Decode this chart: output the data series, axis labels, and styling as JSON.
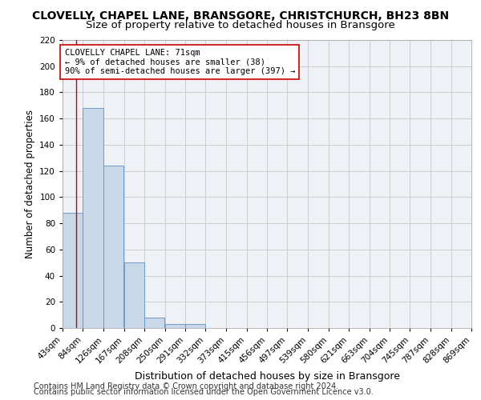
{
  "title": "CLOVELLY, CHAPEL LANE, BRANSGORE, CHRISTCHURCH, BH23 8BN",
  "subtitle": "Size of property relative to detached houses in Bransgore",
  "xlabel": "Distribution of detached houses by size in Bransgore",
  "ylabel": "Number of detached properties",
  "footnote1": "Contains HM Land Registry data © Crown copyright and database right 2024.",
  "footnote2": "Contains public sector information licensed under the Open Government Licence v3.0.",
  "annotation_line1": "CLOVELLY CHAPEL LANE: 71sqm",
  "annotation_line2": "← 9% of detached houses are smaller (38)",
  "annotation_line3": "90% of semi-detached houses are larger (397) →",
  "bar_edges": [
    43,
    84,
    126,
    167,
    208,
    250,
    291,
    332,
    373,
    415,
    456,
    497,
    539,
    580,
    621,
    663,
    704,
    745,
    787,
    828,
    869
  ],
  "bar_heights": [
    88,
    168,
    124,
    50,
    8,
    3,
    3,
    0,
    0,
    0,
    0,
    0,
    0,
    0,
    0,
    0,
    0,
    0,
    0,
    0
  ],
  "bar_color": "#c8d8e8",
  "bar_edgecolor": "#6090c0",
  "property_line_x": 71,
  "property_line_color": "#cc0000",
  "annotation_box_edgecolor": "#cc0000",
  "grid_color": "#c8c8c8",
  "ylim": [
    0,
    220
  ],
  "yticks": [
    0,
    20,
    40,
    60,
    80,
    100,
    120,
    140,
    160,
    180,
    200,
    220
  ],
  "bg_color": "#eef2f6",
  "title_fontsize": 10,
  "subtitle_fontsize": 9.5,
  "xlabel_fontsize": 9,
  "ylabel_fontsize": 8.5,
  "tick_fontsize": 7.5,
  "annotation_fontsize": 7.5,
  "footnote_fontsize": 7
}
